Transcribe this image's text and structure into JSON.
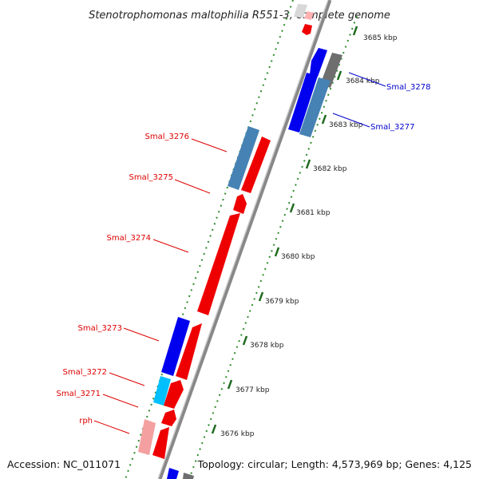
{
  "title": "Stenotrophomonas maltophilia R551-3, complete genome",
  "footer": {
    "accession": "Accession: NC_011071",
    "topology": "Topology: circular; Length: 4,573,969 bp; Genes: 4,125"
  },
  "ticks": [
    "3685 kbp",
    "3684 kbp",
    "3683 kbp",
    "3682 kbp",
    "3681 kbp",
    "3680 kbp",
    "3679 kbp",
    "3678 kbp",
    "3677 kbp",
    "3676 kbp"
  ],
  "genes": [
    {
      "label": "Smal_3278",
      "strand": "forward",
      "color": "#0000ee"
    },
    {
      "label": "Smal_3277",
      "strand": "forward",
      "color": "#4682b4"
    },
    {
      "label": "Smal_3276",
      "strand": "forward",
      "color": "#4682b4"
    },
    {
      "label": "Smal_3275",
      "strand": "reverse",
      "color": "#ff0000"
    },
    {
      "label": "Smal_3274",
      "strand": "reverse",
      "color": "#ff0000"
    },
    {
      "label": "Smal_3273",
      "strand": "forward",
      "color": "#0000ee"
    },
    {
      "label": "Smal_3272",
      "strand": "forward",
      "color": "#00bfff"
    },
    {
      "label": "Smal_3271",
      "strand": "reverse",
      "color": "#ff0000"
    },
    {
      "label": "rph",
      "strand": "reverse",
      "color": "#ff0000"
    }
  ],
  "colors": {
    "forward_label": "#0000cc",
    "reverse_label": "#dd0000",
    "backbone": "#808080",
    "dots": "#2e8b2e"
  }
}
